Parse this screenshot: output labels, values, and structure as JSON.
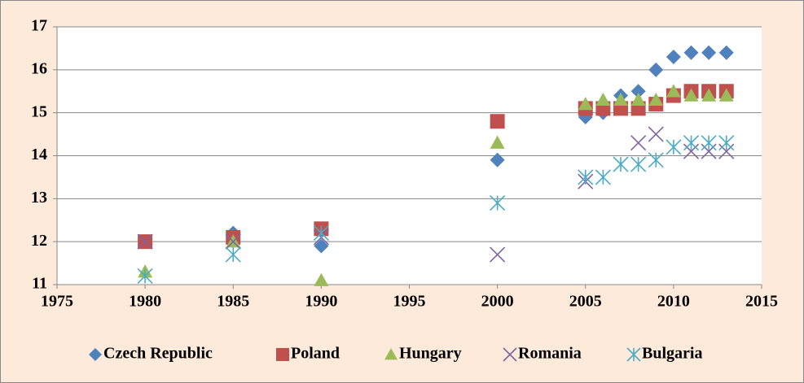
{
  "chart_data": {
    "type": "scatter",
    "xlim": [
      1975,
      2015
    ],
    "xticks": [
      1975,
      1980,
      1985,
      1990,
      1995,
      2000,
      2005,
      2010,
      2015
    ],
    "ylim": [
      11,
      17
    ],
    "yticks": [
      11,
      12,
      13,
      14,
      15,
      16,
      17
    ],
    "grid": true,
    "legend": "bottom",
    "series": [
      {
        "name": "Czech Republic",
        "color": "#4f81bd",
        "marker": "diamond",
        "x": [
          1980,
          1985,
          1990,
          2000,
          2005,
          2006,
          2007,
          2008,
          2009,
          2010,
          2011,
          2012,
          2013
        ],
        "values": [
          12.0,
          12.2,
          11.9,
          13.9,
          14.9,
          15.0,
          15.4,
          15.5,
          16.0,
          16.3,
          16.4,
          16.4,
          16.4
        ]
      },
      {
        "name": "Poland",
        "color": "#c0504d",
        "marker": "square",
        "x": [
          1980,
          1985,
          1990,
          2000,
          2005,
          2006,
          2007,
          2008,
          2009,
          2010,
          2011,
          2012,
          2013
        ],
        "values": [
          12.0,
          12.1,
          12.3,
          14.8,
          15.1,
          15.1,
          15.1,
          15.1,
          15.2,
          15.4,
          15.5,
          15.5,
          15.5
        ]
      },
      {
        "name": "Hungary",
        "color": "#9bbb59",
        "marker": "triangle",
        "x": [
          1980,
          1985,
          1990,
          2000,
          2005,
          2006,
          2007,
          2008,
          2009,
          2010,
          2011,
          2012,
          2013
        ],
        "values": [
          11.3,
          12.0,
          11.1,
          14.3,
          15.2,
          15.3,
          15.3,
          15.3,
          15.3,
          15.5,
          15.4,
          15.4,
          15.4
        ]
      },
      {
        "name": "Romania",
        "color": "#8064a2",
        "marker": "x",
        "x": [
          1980,
          1985,
          1990,
          2000,
          2005,
          2008,
          2009,
          2011,
          2012,
          2013
        ],
        "values": [
          12.0,
          12.0,
          12.1,
          11.7,
          13.4,
          14.3,
          14.5,
          14.1,
          14.1,
          14.1
        ]
      },
      {
        "name": "Bulgaria",
        "color": "#4bacc6",
        "marker": "star",
        "x": [
          1980,
          1985,
          1990,
          2000,
          2005,
          2006,
          2007,
          2008,
          2009,
          2010,
          2011,
          2012,
          2013
        ],
        "values": [
          11.2,
          11.7,
          12.2,
          12.9,
          13.5,
          13.5,
          13.8,
          13.8,
          13.9,
          14.2,
          14.3,
          14.3,
          14.3
        ]
      }
    ]
  }
}
